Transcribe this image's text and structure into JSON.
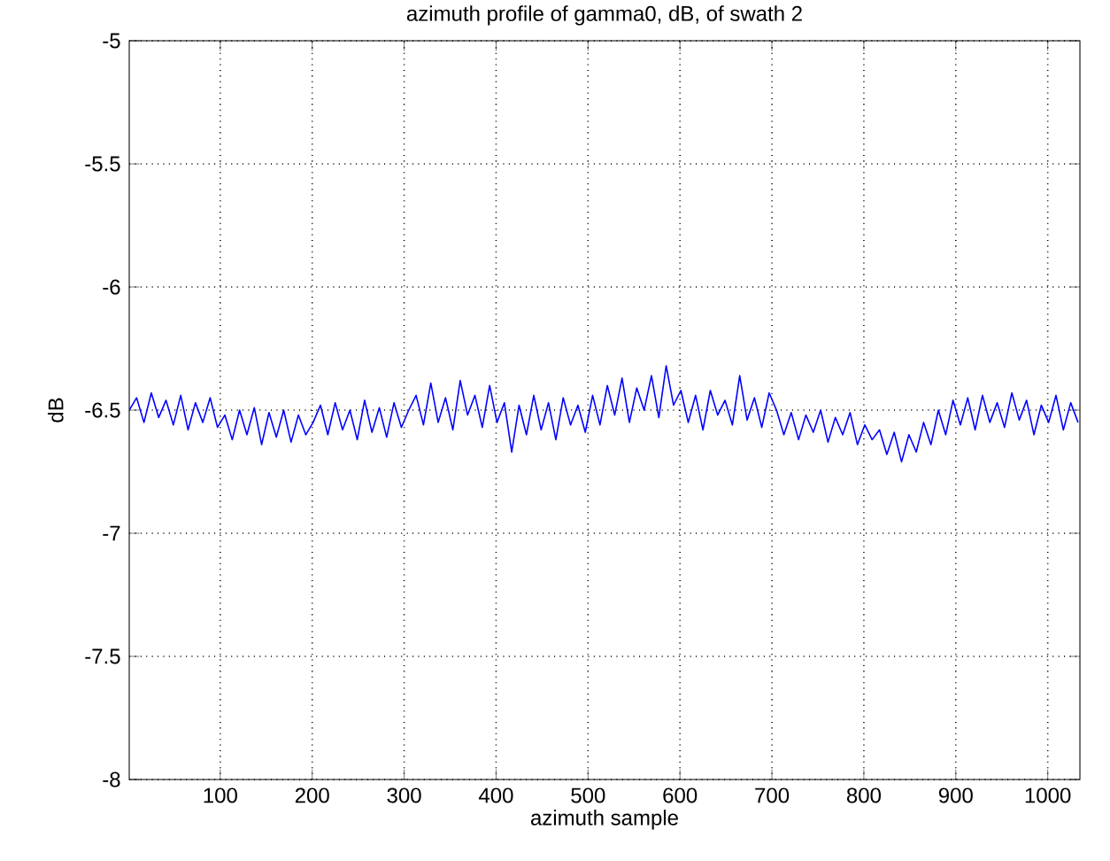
{
  "chart_data": {
    "type": "line",
    "title": "azimuth profile of gamma0, dB, of swath 2",
    "xlabel": "azimuth sample",
    "ylabel": "dB",
    "xlim": [
      1,
      1035
    ],
    "ylim": [
      -8,
      -5
    ],
    "xticks": [
      100,
      200,
      300,
      400,
      500,
      600,
      700,
      800,
      900,
      1000
    ],
    "yticks": [
      -8,
      -7.5,
      -7,
      -6.5,
      -6,
      -5.5,
      -5
    ],
    "grid": true,
    "line_style": "solid",
    "series": [
      {
        "color": "#0000ff",
        "x": [
          1,
          9,
          17,
          25,
          33,
          41,
          49,
          57,
          65,
          73,
          81,
          89,
          97,
          105,
          113,
          121,
          129,
          137,
          145,
          153,
          161,
          169,
          177,
          185,
          193,
          201,
          209,
          217,
          225,
          233,
          241,
          249,
          257,
          265,
          273,
          281,
          289,
          297,
          305,
          313,
          321,
          329,
          337,
          345,
          353,
          361,
          369,
          377,
          385,
          393,
          401,
          409,
          417,
          425,
          433,
          441,
          449,
          457,
          465,
          473,
          481,
          489,
          497,
          505,
          513,
          521,
          529,
          537,
          545,
          553,
          561,
          569,
          577,
          585,
          593,
          601,
          609,
          617,
          625,
          633,
          641,
          649,
          657,
          665,
          673,
          681,
          689,
          697,
          705,
          713,
          721,
          729,
          737,
          745,
          753,
          761,
          769,
          777,
          785,
          793,
          801,
          809,
          817,
          825,
          833,
          841,
          849,
          857,
          865,
          873,
          881,
          889,
          897,
          905,
          913,
          921,
          929,
          937,
          945,
          953,
          961,
          969,
          977,
          985,
          993,
          1001,
          1009,
          1017,
          1025,
          1033
        ],
        "values": [
          -6.5,
          -6.45,
          -6.55,
          -6.43,
          -6.53,
          -6.46,
          -6.56,
          -6.44,
          -6.58,
          -6.47,
          -6.55,
          -6.45,
          -6.57,
          -6.52,
          -6.62,
          -6.5,
          -6.6,
          -6.49,
          -6.64,
          -6.51,
          -6.61,
          -6.5,
          -6.63,
          -6.52,
          -6.6,
          -6.55,
          -6.48,
          -6.6,
          -6.47,
          -6.58,
          -6.5,
          -6.62,
          -6.46,
          -6.59,
          -6.49,
          -6.61,
          -6.47,
          -6.57,
          -6.5,
          -6.44,
          -6.56,
          -6.39,
          -6.55,
          -6.45,
          -6.58,
          -6.38,
          -6.52,
          -6.44,
          -6.57,
          -6.4,
          -6.55,
          -6.47,
          -6.67,
          -6.48,
          -6.6,
          -6.44,
          -6.58,
          -6.47,
          -6.62,
          -6.45,
          -6.56,
          -6.48,
          -6.59,
          -6.44,
          -6.56,
          -6.4,
          -6.52,
          -6.37,
          -6.55,
          -6.41,
          -6.5,
          -6.36,
          -6.53,
          -6.32,
          -6.48,
          -6.42,
          -6.55,
          -6.44,
          -6.58,
          -6.42,
          -6.52,
          -6.46,
          -6.56,
          -6.36,
          -6.54,
          -6.45,
          -6.57,
          -6.43,
          -6.5,
          -6.6,
          -6.51,
          -6.62,
          -6.52,
          -6.59,
          -6.5,
          -6.63,
          -6.53,
          -6.6,
          -6.51,
          -6.64,
          -6.56,
          -6.62,
          -6.58,
          -6.68,
          -6.59,
          -6.71,
          -6.6,
          -6.67,
          -6.55,
          -6.64,
          -6.5,
          -6.6,
          -6.46,
          -6.56,
          -6.45,
          -6.58,
          -6.44,
          -6.55,
          -6.47,
          -6.57,
          -6.43,
          -6.54,
          -6.46,
          -6.6,
          -6.48,
          -6.55,
          -6.44,
          -6.58,
          -6.47,
          -6.55
        ]
      }
    ]
  }
}
